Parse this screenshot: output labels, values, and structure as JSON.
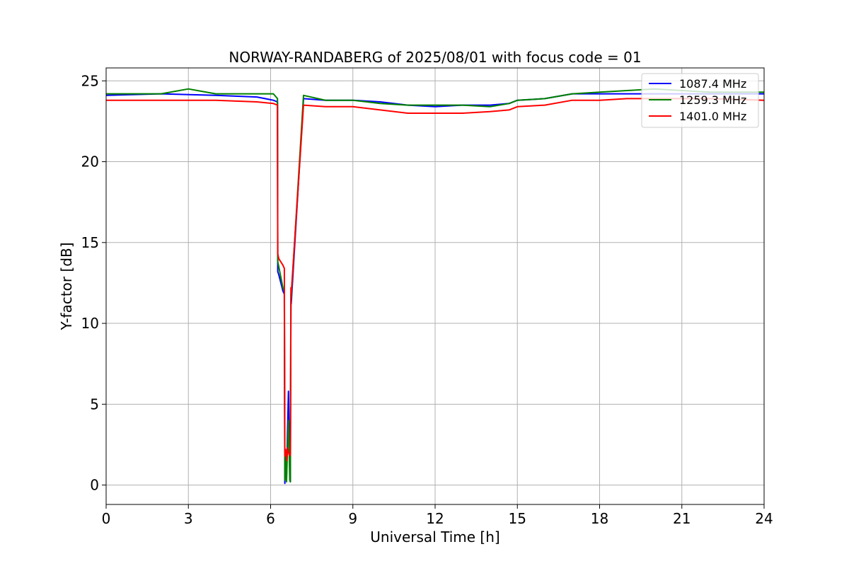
{
  "chart_data": {
    "type": "line",
    "title": "NORWAY-RANDABERG of 2025/08/01 with focus code = 01",
    "xlabel": "Universal Time [h]",
    "ylabel": "Y-factor [dB]",
    "xlim": [
      0,
      24
    ],
    "ylim": [
      -1.2,
      25.8
    ],
    "xticks": [
      0,
      3,
      6,
      9,
      12,
      15,
      18,
      21,
      24
    ],
    "yticks": [
      0,
      5,
      10,
      15,
      20,
      25
    ],
    "grid": true,
    "legend_position": "top-right",
    "series": [
      {
        "name": "1087.4 MHz",
        "color": "#0000ff",
        "x": [
          0,
          2,
          4,
          5.5,
          6.1,
          6.25,
          6.26,
          6.3,
          6.45,
          6.5,
          6.52,
          6.55,
          6.58,
          6.62,
          6.65,
          6.7,
          6.72,
          6.74,
          6.75,
          7.2,
          8,
          9,
          10,
          11,
          12,
          13,
          14,
          14.7,
          15,
          16,
          17,
          18,
          20,
          22,
          24
        ],
        "y": [
          24.1,
          24.2,
          24.1,
          24.0,
          23.8,
          23.7,
          13.2,
          13.0,
          12.0,
          11.8,
          0.1,
          2.0,
          0.5,
          3.5,
          5.8,
          1.0,
          0.2,
          11.5,
          11.2,
          23.9,
          23.8,
          23.8,
          23.7,
          23.5,
          23.4,
          23.5,
          23.5,
          23.6,
          23.8,
          23.9,
          24.2,
          24.2,
          24.2,
          24.2,
          24.2
        ]
      },
      {
        "name": "1259.3 MHz",
        "color": "#008000",
        "x": [
          0,
          2,
          3,
          4,
          5.5,
          6.1,
          6.25,
          6.26,
          6.3,
          6.45,
          6.5,
          6.52,
          6.55,
          6.58,
          6.62,
          6.65,
          6.7,
          6.72,
          6.74,
          6.75,
          7.2,
          8,
          9,
          10,
          11,
          12,
          13,
          14,
          14.7,
          15,
          16,
          17,
          18,
          19,
          20,
          22,
          24
        ],
        "y": [
          24.2,
          24.2,
          24.5,
          24.2,
          24.2,
          24.2,
          23.9,
          13.8,
          13.5,
          12.2,
          12.0,
          0.3,
          1.5,
          0.2,
          2.5,
          4.0,
          0.3,
          0.2,
          11.8,
          11.6,
          24.1,
          23.8,
          23.8,
          23.6,
          23.5,
          23.5,
          23.5,
          23.4,
          23.6,
          23.8,
          23.9,
          24.2,
          24.3,
          24.4,
          24.5,
          24.3,
          24.3
        ]
      },
      {
        "name": "1401.0 MHz",
        "color": "#ff0000",
        "x": [
          0,
          2,
          3,
          4,
          5.5,
          6.1,
          6.25,
          6.26,
          6.3,
          6.45,
          6.5,
          6.52,
          6.55,
          6.58,
          6.62,
          6.65,
          6.7,
          6.72,
          6.74,
          6.75,
          7.2,
          8,
          9,
          10,
          11,
          12,
          13,
          14,
          14.7,
          15,
          16,
          17,
          18,
          19,
          20,
          22,
          24
        ],
        "y": [
          23.8,
          23.8,
          23.8,
          23.8,
          23.7,
          23.6,
          23.5,
          14.3,
          14.0,
          13.6,
          13.4,
          1.8,
          2.2,
          1.5,
          2.3,
          2.0,
          1.8,
          1.9,
          12.2,
          11.8,
          23.5,
          23.4,
          23.4,
          23.2,
          23.0,
          23.0,
          23.0,
          23.1,
          23.2,
          23.4,
          23.5,
          23.8,
          23.8,
          23.9,
          23.9,
          23.9,
          23.8
        ]
      }
    ]
  }
}
